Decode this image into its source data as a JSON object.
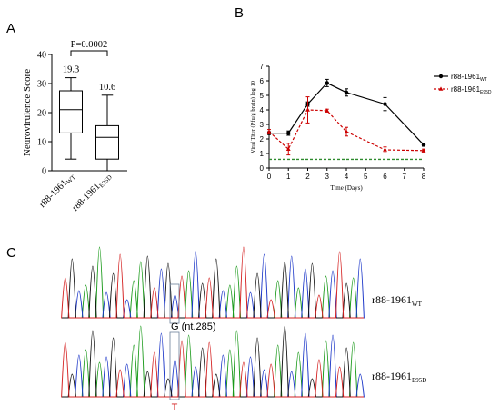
{
  "panels": {
    "a": "A",
    "b": "B",
    "c": "C"
  },
  "chart_data": [
    {
      "type": "box",
      "panel": "A",
      "ylabel": "Neurovirulence Score",
      "ylim": [
        0,
        40
      ],
      "yticks": [
        0,
        10,
        20,
        30,
        40
      ],
      "categories_main": [
        "r88-1961",
        "r88-1961"
      ],
      "categories_sub": [
        "WT",
        "E95D"
      ],
      "boxes": [
        {
          "whisker_low": 4,
          "q1": 13,
          "median": 21,
          "q3": 27.5,
          "whisker_high": 32,
          "mean_label": "19.3"
        },
        {
          "whisker_low": 0,
          "q1": 4,
          "median": 11.5,
          "q3": 15.5,
          "whisker_high": 26,
          "mean_label": "10.6"
        }
      ],
      "pvalue": "P=0.0002"
    },
    {
      "type": "line",
      "panel": "B",
      "xlabel": "Time (Days)",
      "ylabel": "Viral Titer (Pfu/g brain) log 10",
      "xlim": [
        0,
        8
      ],
      "ylim": [
        0,
        7
      ],
      "xticks": [
        0,
        1,
        2,
        3,
        4,
        5,
        6,
        7,
        8
      ],
      "yticks": [
        0,
        1,
        2,
        3,
        4,
        5,
        6,
        7
      ],
      "series": [
        {
          "name_main": "r88-1961",
          "name_sub": "WT",
          "color": "#000000",
          "style": "solid",
          "marker": "circle",
          "x": [
            0,
            1,
            2,
            3,
            4,
            6,
            8
          ],
          "y": [
            2.4,
            2.4,
            4.4,
            5.85,
            5.2,
            4.4,
            1.6
          ],
          "err": [
            0.1,
            0.15,
            0.15,
            0.25,
            0.25,
            0.45,
            0.1
          ]
        },
        {
          "name_main": "r88-1961",
          "name_sub": "E95D",
          "color": "#cc0000",
          "style": "dashed",
          "marker": "triangle",
          "x": [
            0,
            1,
            2,
            3,
            4,
            6,
            8
          ],
          "y": [
            2.5,
            1.3,
            4.0,
            3.95,
            2.5,
            1.25,
            1.2
          ],
          "err": [
            0.15,
            0.4,
            0.9,
            0.1,
            0.3,
            0.2,
            0.1
          ]
        }
      ],
      "limit_line": {
        "y": 0.6,
        "color": "#2e8b2e"
      }
    }
  ],
  "chromatogram": {
    "colors": {
      "A": "#1a9a1a",
      "C": "#1a35c8",
      "G": "#111111",
      "T": "#d42020"
    },
    "sequence": "TGCAGACGTCAAGTCGCTACGTGCAATCGCTAGCACGTACTGAC",
    "wt_label_main": "r88-1961",
    "wt_label_sub": "WT",
    "mut_label_main": "r88-1961",
    "mut_label_sub": "E95D",
    "marker_label": "G (nt.285)",
    "mutation_letter": "T"
  }
}
